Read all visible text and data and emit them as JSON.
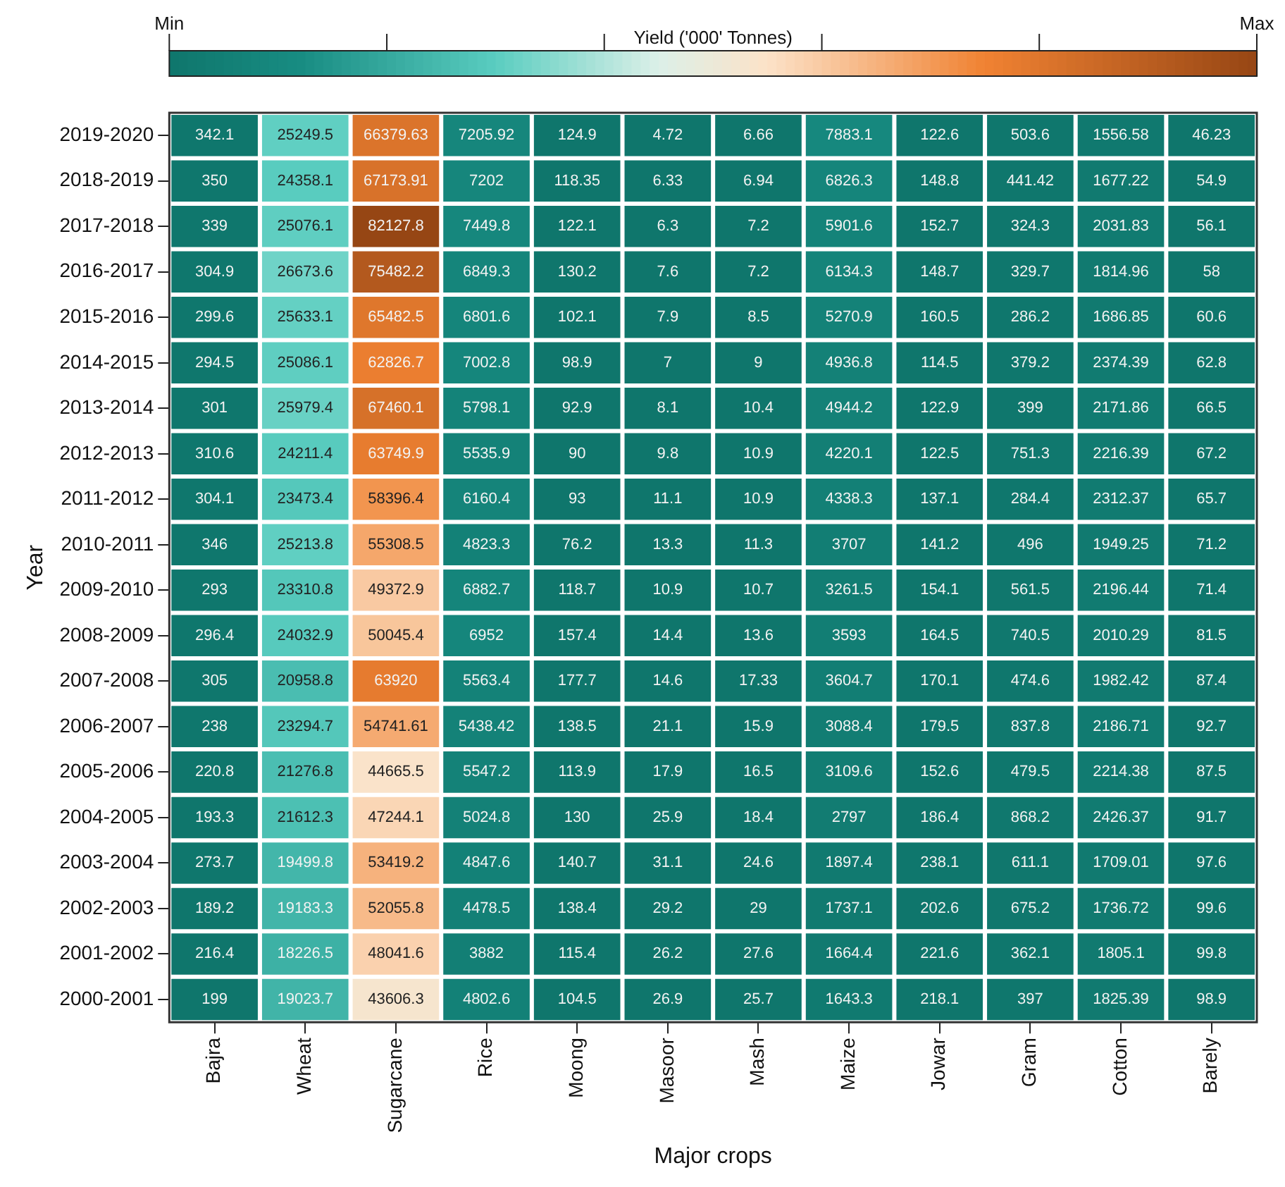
{
  "chart_data": {
    "type": "heatmap",
    "xlabel": "Major crops",
    "ylabel": "Year",
    "clabel": "Yield ('000' Tonnes)",
    "categories": [
      "Bajra",
      "Wheat",
      "Sugarcane",
      "Rice",
      "Moong",
      "Masoor",
      "Mash",
      "Maize",
      "Jowar",
      "Gram",
      "Cotton",
      "Barely"
    ],
    "y_categories": [
      "2019-2020",
      "2018-2019",
      "2017-2018",
      "2016-2017",
      "2015-2016",
      "2014-2015",
      "2013-2014",
      "2012-2013",
      "2011-2012",
      "2010-2011",
      "2009-2010",
      "2008-2009",
      "2007-2008",
      "2006-2007",
      "2005-2006",
      "2004-2005",
      "2003-2004",
      "2002-2003",
      "2001-2002",
      "2000-2001"
    ],
    "cells": [
      [
        342.1,
        25249.5,
        66379.63,
        7205.92,
        124.9,
        4.72,
        6.66,
        7883.1,
        122.6,
        503.6,
        1556.58,
        46.23
      ],
      [
        350,
        24358.1,
        67173.91,
        7202,
        118.35,
        6.33,
        6.94,
        6826.3,
        148.8,
        441.42,
        1677.22,
        54.9
      ],
      [
        339,
        25076.1,
        82127.8,
        7449.8,
        122.1,
        6.3,
        7.2,
        5901.6,
        152.7,
        324.3,
        2031.83,
        56.1
      ],
      [
        304.9,
        26673.6,
        75482.2,
        6849.3,
        130.2,
        7.6,
        7.2,
        6134.3,
        148.7,
        329.7,
        1814.96,
        58
      ],
      [
        299.6,
        25633.1,
        65482.5,
        6801.6,
        102.1,
        7.9,
        8.5,
        5270.9,
        160.5,
        286.2,
        1686.85,
        60.6
      ],
      [
        294.5,
        25086.1,
        62826.7,
        7002.8,
        98.9,
        7,
        9,
        4936.8,
        114.5,
        379.2,
        2374.39,
        62.8
      ],
      [
        301,
        25979.4,
        67460.1,
        5798.1,
        92.9,
        8.1,
        10.4,
        4944.2,
        122.9,
        399,
        2171.86,
        66.5
      ],
      [
        310.6,
        24211.4,
        63749.9,
        5535.9,
        90,
        9.8,
        10.9,
        4220.1,
        122.5,
        751.3,
        2216.39,
        67.2
      ],
      [
        304.1,
        23473.4,
        58396.4,
        6160.4,
        93,
        11.1,
        10.9,
        4338.3,
        137.1,
        284.4,
        2312.37,
        65.7
      ],
      [
        346,
        25213.8,
        55308.5,
        4823.3,
        76.2,
        13.3,
        11.3,
        3707,
        141.2,
        496,
        1949.25,
        71.2
      ],
      [
        293,
        23310.8,
        49372.9,
        6882.7,
        118.7,
        10.9,
        10.7,
        3261.5,
        154.1,
        561.5,
        2196.44,
        71.4
      ],
      [
        296.4,
        24032.9,
        50045.4,
        6952,
        157.4,
        14.4,
        13.6,
        3593,
        164.5,
        740.5,
        2010.29,
        81.5
      ],
      [
        305,
        20958.8,
        63920,
        5563.4,
        177.7,
        14.6,
        17.33,
        3604.7,
        170.1,
        474.6,
        1982.42,
        87.4
      ],
      [
        238,
        23294.7,
        54741.61,
        5438.42,
        138.5,
        21.1,
        15.9,
        3088.4,
        179.5,
        837.8,
        2186.71,
        92.7
      ],
      [
        220.8,
        21276.8,
        44665.5,
        5547.2,
        113.9,
        17.9,
        16.5,
        3109.6,
        152.6,
        479.5,
        2214.38,
        87.5
      ],
      [
        193.3,
        21612.3,
        47244.1,
        5024.8,
        130,
        25.9,
        18.4,
        2797,
        186.4,
        868.2,
        2426.37,
        91.7
      ],
      [
        273.7,
        19499.8,
        53419.2,
        4847.6,
        140.7,
        31.1,
        24.6,
        1897.4,
        238.1,
        611.1,
        1709.01,
        97.6
      ],
      [
        189.2,
        19183.3,
        52055.8,
        4478.5,
        138.4,
        29.2,
        29,
        1737.1,
        202.6,
        675.2,
        1736.72,
        99.6
      ],
      [
        216.4,
        18226.5,
        48041.6,
        3882,
        115.4,
        26.2,
        27.6,
        1664.4,
        221.6,
        362.1,
        1805.1,
        99.8
      ],
      [
        199,
        19023.7,
        43606.3,
        4802.6,
        104.5,
        26.9,
        25.7,
        1643.3,
        218.1,
        397,
        1825.39,
        98.9
      ]
    ],
    "clim": [
      4.72,
      82127.8
    ],
    "cticks": [
      {
        "value": 4.72,
        "label": "Min"
      },
      {
        "value": 16430,
        "label": null
      },
      {
        "value": 32850,
        "label": null
      },
      {
        "value": 49280,
        "label": null
      },
      {
        "value": 65700,
        "label": null
      },
      {
        "value": 82127.8,
        "label": "Max"
      }
    ],
    "data_labels": true
  }
}
